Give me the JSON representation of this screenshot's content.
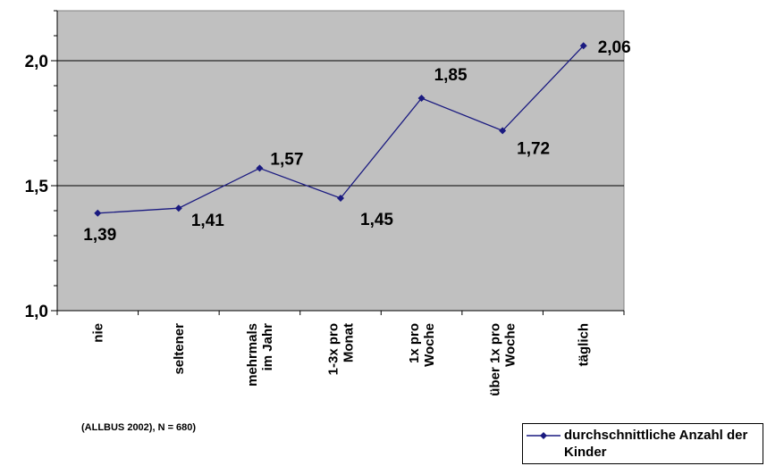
{
  "chart_data": {
    "type": "line",
    "categories": [
      [
        "nie"
      ],
      [
        "seltener"
      ],
      [
        "mehrmals",
        "im Jahr"
      ],
      [
        "1-3x pro",
        "Monat"
      ],
      [
        "1x pro",
        "Woche"
      ],
      [
        "über 1x pro",
        "Woche"
      ],
      [
        "täglich"
      ]
    ],
    "series": [
      {
        "name": "durchschnittliche Anzahl der Kinder",
        "values": [
          1.39,
          1.41,
          1.57,
          1.45,
          1.85,
          1.72,
          2.06
        ],
        "labels": [
          "1,39",
          "1,41",
          "1,57",
          "1,45",
          "1,85",
          "1,72",
          "2,06"
        ],
        "color": "#1a1a80"
      }
    ],
    "yticks": [
      {
        "value": 1.0,
        "label": "1,0"
      },
      {
        "value": 1.5,
        "label": "1,5"
      },
      {
        "value": 2.0,
        "label": "2,0"
      }
    ],
    "ylim": [
      1.0,
      2.2
    ],
    "grid": true,
    "plot_background": "#c0c0c0",
    "legend_position": "bottom-right"
  },
  "note": "(ALLBUS 2002), N = 680)",
  "legend": {
    "label": "durchschnittliche Anzahl der Kinder"
  }
}
